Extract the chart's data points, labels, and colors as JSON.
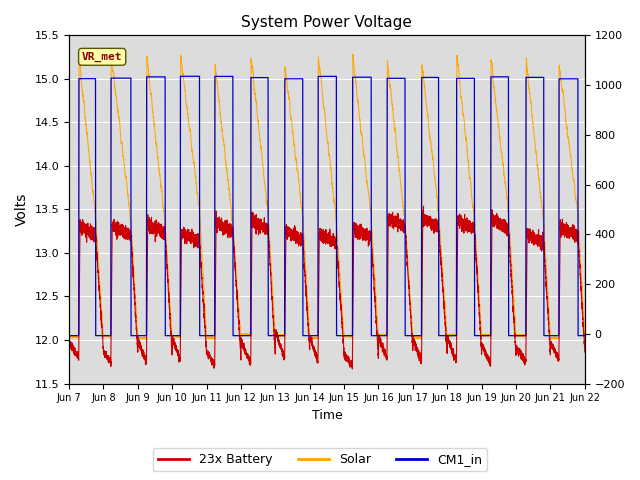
{
  "title": "System Power Voltage",
  "xlabel": "Time",
  "ylabel": "Volts",
  "xlim_days": [
    0,
    15
  ],
  "ylim_left": [
    11.5,
    15.5
  ],
  "ylim_right": [
    -200,
    1200
  ],
  "yticks_left": [
    11.5,
    12.0,
    12.5,
    13.0,
    13.5,
    14.0,
    14.5,
    15.0,
    15.5
  ],
  "yticks_right": [
    -200,
    0,
    200,
    400,
    600,
    800,
    1000,
    1200
  ],
  "x_tick_labels": [
    "Jun 7",
    "Jun 8",
    "Jun 9",
    "Jun 10",
    "Jun 11",
    "Jun 12",
    "Jun 13",
    "Jun 14",
    "Jun 15",
    "Jun 16",
    "Jun 17",
    "Jun 18",
    "Jun 19",
    "Jun 20",
    "Jun 21",
    "Jun 22"
  ],
  "color_battery": "#CC0000",
  "color_solar": "#FFA500",
  "color_cm1": "#0000CC",
  "legend_labels": [
    "23x Battery",
    "Solar",
    "CM1_in"
  ],
  "annotation_text": "VR_met",
  "bg_color": "#DCDCDC",
  "grid_color": "#FFFFFF",
  "n_days": 15,
  "points_per_day": 500
}
